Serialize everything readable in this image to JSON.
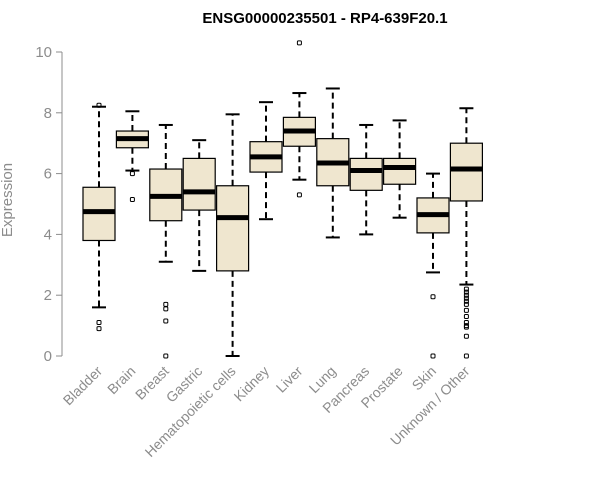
{
  "chart_data": {
    "type": "boxplot",
    "title": "ENSG00000235501 - RP4-639F20.1",
    "xlabel": "",
    "ylabel": "Expression",
    "ylim": [
      0,
      10.4
    ],
    "yticks": [
      0,
      2,
      4,
      6,
      8,
      10
    ],
    "ytick_labels": [
      "0",
      "2",
      "4",
      "6",
      "8",
      "10"
    ],
    "grid": false,
    "colors": {
      "box_fill": "#efe6cf",
      "stroke": "#000000",
      "axis": "#8c8c8c"
    },
    "categories": [
      "Bladder",
      "Brain",
      "Breast",
      "Gastric",
      "Hematopoietic cells",
      "Kidney",
      "Liver",
      "Lung",
      "Pancreas",
      "Prostate",
      "Skin",
      "Unknown / Other"
    ],
    "boxes": [
      {
        "label": "Bladder",
        "whisker_low": 1.6,
        "q1": 3.8,
        "median": 4.75,
        "q3": 5.55,
        "whisker_high": 8.2,
        "outliers": [
          1.1,
          0.9,
          8.25
        ]
      },
      {
        "label": "Brain",
        "whisker_low": 6.1,
        "q1": 6.85,
        "median": 7.15,
        "q3": 7.4,
        "whisker_high": 8.05,
        "outliers": [
          6.0,
          5.15
        ]
      },
      {
        "label": "Breast",
        "whisker_low": 3.1,
        "q1": 4.45,
        "median": 5.25,
        "q3": 6.15,
        "whisker_high": 7.6,
        "outliers": [
          1.7,
          1.55,
          1.15,
          0.0
        ]
      },
      {
        "label": "Gastric",
        "whisker_low": 2.8,
        "q1": 4.8,
        "median": 5.4,
        "q3": 6.5,
        "whisker_high": 7.1,
        "outliers": []
      },
      {
        "label": "Hematopoietic cells",
        "whisker_low": 0.0,
        "q1": 2.8,
        "median": 4.55,
        "q3": 5.6,
        "whisker_high": 7.95,
        "outliers": []
      },
      {
        "label": "Kidney",
        "whisker_low": 4.5,
        "q1": 6.05,
        "median": 6.55,
        "q3": 7.05,
        "whisker_high": 8.35,
        "outliers": []
      },
      {
        "label": "Liver",
        "whisker_low": 5.8,
        "q1": 6.9,
        "median": 7.4,
        "q3": 7.85,
        "whisker_high": 8.65,
        "outliers": [
          10.3,
          5.3
        ]
      },
      {
        "label": "Lung",
        "whisker_low": 3.9,
        "q1": 5.6,
        "median": 6.35,
        "q3": 7.15,
        "whisker_high": 8.8,
        "outliers": []
      },
      {
        "label": "Pancreas",
        "whisker_low": 4.0,
        "q1": 5.45,
        "median": 6.1,
        "q3": 6.5,
        "whisker_high": 7.6,
        "outliers": []
      },
      {
        "label": "Prostate",
        "whisker_low": 4.55,
        "q1": 5.65,
        "median": 6.2,
        "q3": 6.5,
        "whisker_high": 7.75,
        "outliers": []
      },
      {
        "label": "Skin",
        "whisker_low": 2.75,
        "q1": 4.05,
        "median": 4.65,
        "q3": 5.2,
        "whisker_high": 6.0,
        "outliers": [
          1.95,
          0.0
        ]
      },
      {
        "label": "Unknown / Other",
        "whisker_low": 2.35,
        "q1": 5.1,
        "median": 6.15,
        "q3": 7.0,
        "whisker_high": 8.15,
        "outliers": [
          2.2,
          2.1,
          2.0,
          1.9,
          1.8,
          1.7,
          1.5,
          1.3,
          1.1,
          1.0,
          0.95,
          0.65,
          0.0
        ]
      }
    ]
  }
}
